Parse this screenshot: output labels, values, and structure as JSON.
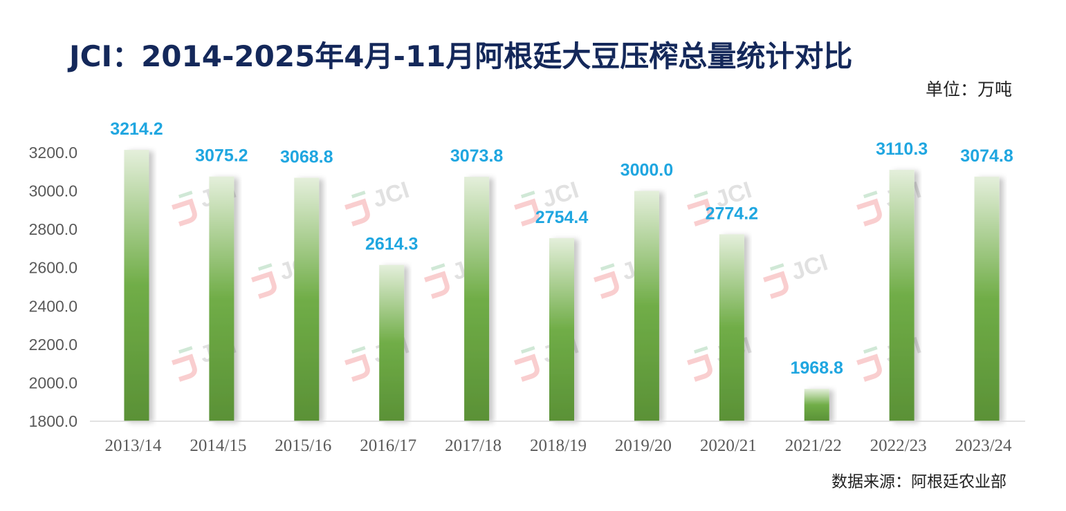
{
  "title": "JCI：2014-2025年4月-11月阿根廷大豆压榨总量统计对比",
  "unit_label": "单位：万吨",
  "source_label": "数据来源：阿根廷农业部",
  "watermark_text": "JCI",
  "colors": {
    "title": "#14285a",
    "data_label": "#1fa6e0",
    "bar_top": "#e4efdb",
    "bar_mid": "#70ad47",
    "bar_bottom": "#5a9136"
  },
  "chart_data": {
    "type": "bar",
    "categories": [
      "2013/14",
      "2014/15",
      "2015/16",
      "2016/17",
      "2017/18",
      "2018/19",
      "2019/20",
      "2020/21",
      "2021/22",
      "2022/23",
      "2023/24"
    ],
    "values": [
      3214.2,
      3075.2,
      3068.8,
      2614.3,
      3073.8,
      2754.4,
      3000.0,
      2774.2,
      1968.8,
      3110.3,
      3074.8
    ],
    "value_labels": [
      "3214.2",
      "3075.2",
      "3068.8",
      "2614.3",
      "3073.8",
      "2754.4",
      "3000.0",
      "2774.2",
      "1968.8",
      "3110.3",
      "3074.8"
    ],
    "y_ticks": [
      "1800.0",
      "2000.0",
      "2200.0",
      "2400.0",
      "2600.0",
      "2800.0",
      "3000.0",
      "3200.0"
    ],
    "ylim": [
      1800,
      3200
    ],
    "grid": false,
    "legend": "none"
  }
}
